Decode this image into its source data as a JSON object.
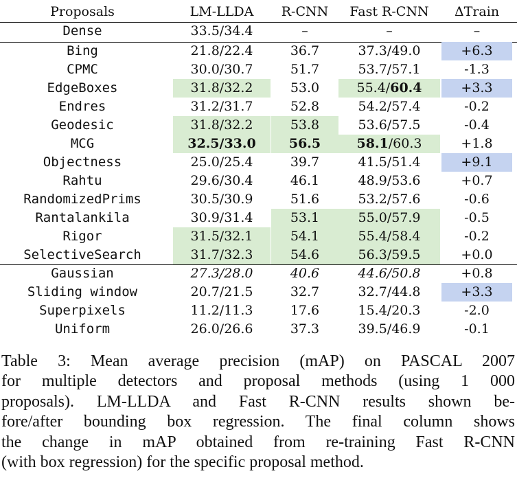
{
  "table": {
    "headers": [
      "Proposals",
      "LM-LLDA",
      "R-CNN",
      "Fast R-CNN",
      "ΔTrain"
    ],
    "rows": [
      {
        "proposal": "Dense",
        "lmllda": "33.5/34.4",
        "rcnn": "–",
        "fast": "–",
        "dtrain": "–"
      },
      {
        "proposal": "Bing",
        "lmllda": "21.8/22.4",
        "rcnn": "36.7",
        "fast": "37.3/49.0",
        "dtrain": "+6.3"
      },
      {
        "proposal": "CPMC",
        "lmllda": "30.0/30.7",
        "rcnn": "51.7",
        "fast": "53.7/57.1",
        "dtrain": "-1.3"
      },
      {
        "proposal": "EdgeBoxes",
        "lmllda": "31.8/32.2",
        "rcnn": "53.0",
        "fast_a": "55.4/",
        "fast_b": "60.4",
        "dtrain": "+3.3"
      },
      {
        "proposal": "Endres",
        "lmllda": "31.2/31.7",
        "rcnn": "52.8",
        "fast": "54.2/57.4",
        "dtrain": "-0.2"
      },
      {
        "proposal": "Geodesic",
        "lmllda": "31.8/32.2",
        "rcnn": "53.8",
        "fast": "53.6/57.5",
        "dtrain": "-0.4"
      },
      {
        "proposal": "MCG",
        "lmllda": "32.5/33.0",
        "rcnn": "56.5",
        "fast_a": "58.1",
        "fast_b": "/60.3",
        "dtrain": "+1.8"
      },
      {
        "proposal": "Objectness",
        "lmllda": "25.0/25.4",
        "rcnn": "39.7",
        "fast": "41.5/51.4",
        "dtrain": "+9.1"
      },
      {
        "proposal": "Rahtu",
        "lmllda": "29.6/30.4",
        "rcnn": "46.1",
        "fast": "48.9/53.6",
        "dtrain": "+0.7"
      },
      {
        "proposal": "RandomizedPrims",
        "lmllda": "30.5/30.9",
        "rcnn": "51.6",
        "fast": "53.2/57.6",
        "dtrain": "-0.6"
      },
      {
        "proposal": "Rantalankila",
        "lmllda": "30.9/31.4",
        "rcnn": "53.1",
        "fast": "55.0/57.9",
        "dtrain": "-0.5"
      },
      {
        "proposal": "Rigor",
        "lmllda": "31.5/32.1",
        "rcnn": "54.1",
        "fast": "55.4/58.4",
        "dtrain": "-0.2"
      },
      {
        "proposal": "SelectiveSearch",
        "lmllda": "31.7/32.3",
        "rcnn": "54.6",
        "fast": "56.3/59.5",
        "dtrain": "+0.0"
      },
      {
        "proposal": "Gaussian",
        "lmllda": "27.3/28.0",
        "rcnn": "40.6",
        "fast": "44.6/50.8",
        "dtrain": "+0.8"
      },
      {
        "proposal": "Sliding window",
        "lmllda": "20.7/21.5",
        "rcnn": "32.7",
        "fast": "32.7/44.8",
        "dtrain": "+3.3"
      },
      {
        "proposal": "Superpixels",
        "lmllda": "11.2/11.3",
        "rcnn": "17.6",
        "fast": "15.4/20.3",
        "dtrain": "-2.0"
      },
      {
        "proposal": "Uniform",
        "lmllda": "26.0/26.6",
        "rcnn": "37.3",
        "fast": "39.5/46.9",
        "dtrain": "-0.1"
      }
    ]
  },
  "colors": {
    "green_highlight": "#d9ecd2",
    "blue_highlight": "#c5d3f0"
  },
  "caption": {
    "lines": [
      "Table 3: Mean average precision (mAP) on PASCAL 2007",
      "for multiple detectors and proposal methods (using 1 000",
      "proposals). LM-LLDA and Fast R-CNN results shown be-",
      "fore/after bounding box regression. The final column shows",
      "the change in mAP obtained from re-training Fast R-CNN",
      "(with box regression) for the specific proposal method."
    ]
  }
}
